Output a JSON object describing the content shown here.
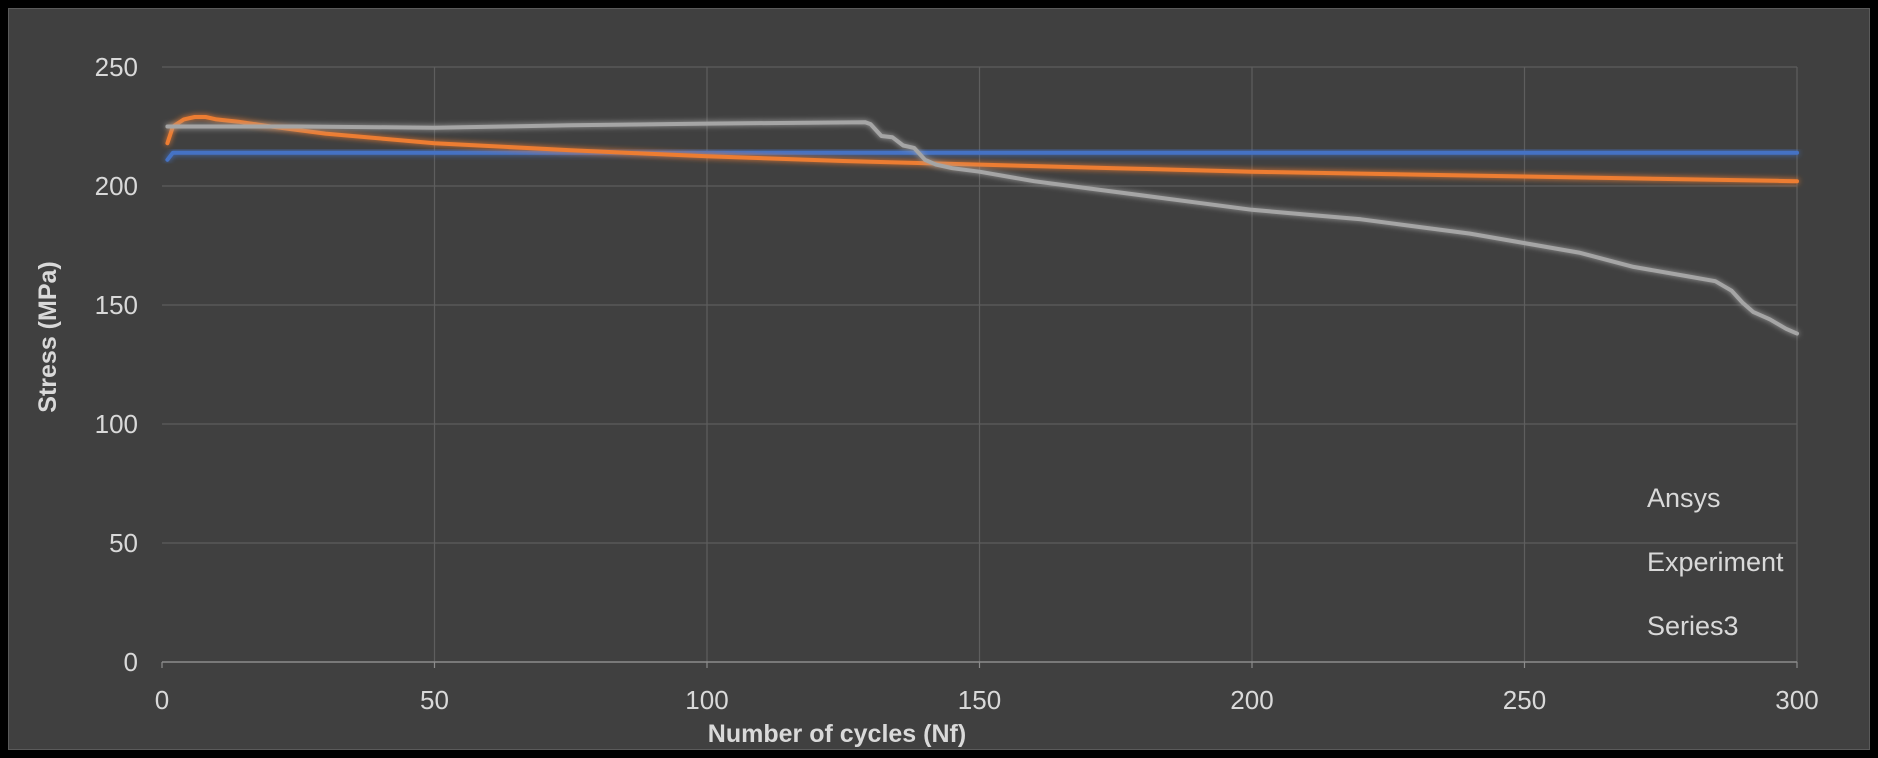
{
  "chart_data": {
    "type": "line",
    "title": "",
    "xlabel": "Number of cycles (Nf)",
    "ylabel": "Stress (MPa)",
    "xlim": [
      0,
      300
    ],
    "ylim": [
      0,
      250
    ],
    "xticks": [
      0,
      50,
      100,
      150,
      200,
      250,
      300
    ],
    "yticks": [
      0,
      50,
      100,
      150,
      200,
      250
    ],
    "grid": true,
    "legend_position": "bottom-right",
    "series": [
      {
        "name": "Ansys",
        "color": "#4472C4",
        "x": [
          1,
          2,
          300
        ],
        "y": [
          211,
          214,
          214
        ]
      },
      {
        "name": "Experiment",
        "color": "#ED7D31",
        "x": [
          1,
          2,
          4,
          6,
          8,
          10,
          14,
          20,
          30,
          50,
          75,
          100,
          125,
          150,
          175,
          200,
          225,
          250,
          275,
          300
        ],
        "y": [
          218,
          225,
          228,
          229,
          229,
          228,
          227,
          225,
          222,
          218,
          215,
          212.5,
          210.5,
          209,
          207.5,
          206,
          205,
          204,
          203,
          202
        ]
      },
      {
        "name": "Series3",
        "color": "#A5A5A5",
        "x": [
          1,
          25,
          50,
          75,
          100,
          129,
          130,
          132,
          134,
          136,
          138,
          140,
          142,
          145,
          150,
          160,
          170,
          180,
          190,
          200,
          210,
          220,
          230,
          240,
          250,
          260,
          270,
          280,
          285,
          288,
          290,
          292,
          295,
          298,
          300
        ],
        "y": [
          225,
          225,
          224.5,
          225.5,
          226.2,
          226.8,
          226,
          221,
          220.5,
          217,
          216,
          211,
          209,
          207.5,
          206,
          202,
          199,
          196,
          193,
          190,
          188,
          186,
          183,
          180,
          176,
          172,
          166,
          162,
          160,
          156,
          151,
          147,
          144,
          140,
          138
        ]
      }
    ]
  }
}
